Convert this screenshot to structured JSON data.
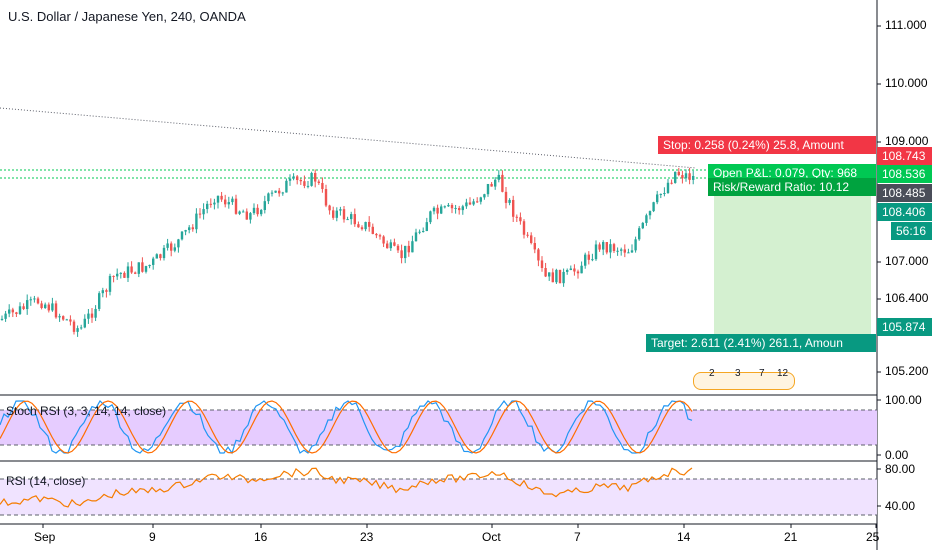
{
  "title": "U.S. Dollar / Japanese Yen, 240, OANDA",
  "price_axis": [
    "111.000",
    "110.000",
    "109.000",
    "107.000",
    "106.400",
    "105.200"
  ],
  "time_axis": [
    "Sep",
    "9",
    "16",
    "23",
    "Oct",
    "7",
    "14",
    "21",
    "25"
  ],
  "price_tags": {
    "stop": "108.743",
    "entry": "108.536",
    "current": "108.485",
    "target_line": "108.406",
    "countdown": "56:16",
    "target": "105.874"
  },
  "position": {
    "stop_label": "Stop: 0.258 (0.24%) 25.8, Amount",
    "pnl_label": "Open P&L: 0.079, Qty: 968",
    "rr_label": "Risk/Reward Ratio: 10.12",
    "target_label": "Target: 2.611 (2.41%) 261.1, Amoun"
  },
  "events": [
    "2",
    "3",
    "7",
    "12"
  ],
  "stoch_rsi": {
    "label": "Stoch RSI (3, 3, 14, 14, close)",
    "axis": [
      "100.00",
      "0.00"
    ]
  },
  "rsi": {
    "label": "RSI (14, close)",
    "axis": [
      "80.00",
      "40.00"
    ]
  },
  "colors": {
    "up": "#26a69a",
    "down": "#ef5350",
    "stop": "#f23645",
    "target": "#089981",
    "profit_zone": "#d4f0d0",
    "stoch_k": "#2196f3",
    "stoch_d": "#ff6d00",
    "rsi_line": "#f57c00",
    "band": "#e6ccff",
    "rsi_band": "#f0e3ff"
  }
}
